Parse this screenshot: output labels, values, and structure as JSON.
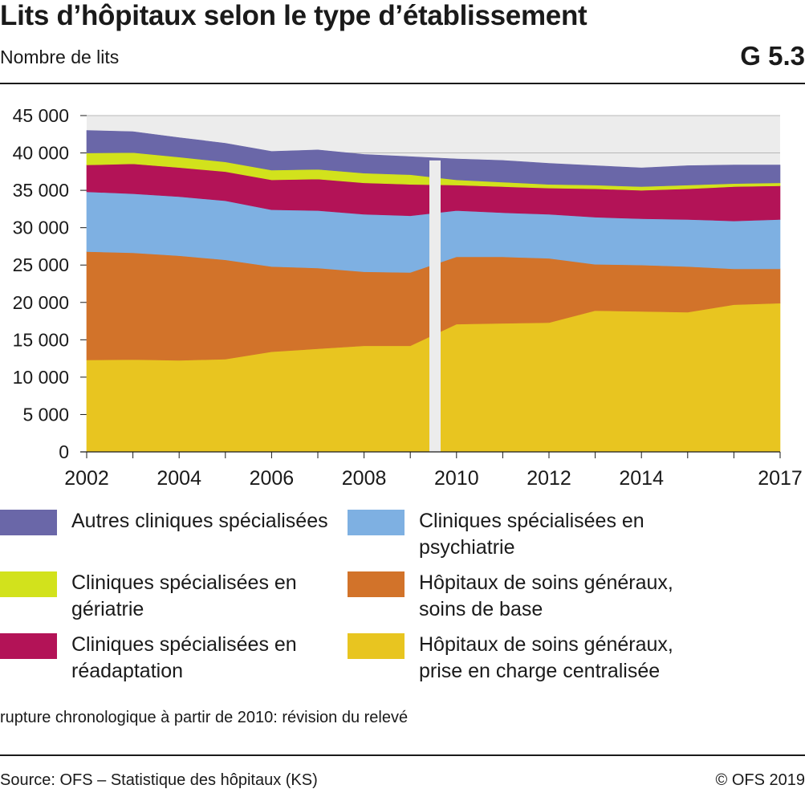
{
  "header": {
    "title": "Lits d’hôpitaux selon le type d’établissement",
    "subtitle": "Nombre de lits",
    "chart_id": "G 5.3"
  },
  "chart_data": {
    "type": "area",
    "stacked": true,
    "x": [
      2002,
      2003,
      2004,
      2005,
      2006,
      2007,
      2008,
      2009,
      2010,
      2011,
      2012,
      2013,
      2014,
      2015,
      2016,
      2017
    ],
    "x_tick_labels": [
      "2002",
      "2004",
      "2006",
      "2008",
      "2010",
      "2012",
      "2014",
      "2017"
    ],
    "x_ticks": [
      2002,
      2004,
      2006,
      2008,
      2010,
      2012,
      2014,
      2017
    ],
    "ylim": [
      0,
      45000
    ],
    "y_ticks": [
      0,
      5000,
      10000,
      15000,
      20000,
      25000,
      30000,
      35000,
      40000,
      45000
    ],
    "y_tick_labels": [
      "0",
      "5 000",
      "10 000",
      "15 000",
      "20 000",
      "25 000",
      "30 000",
      "35 000",
      "40 000",
      "45 000"
    ],
    "grid": true,
    "break_between": [
      2009,
      2010
    ],
    "series": [
      {
        "name": "Hôpitaux de soins généraux, prise en charge centralisée",
        "color": "#e8c520",
        "values": [
          12300,
          12350,
          12250,
          12400,
          13400,
          13800,
          14200,
          14200,
          17100,
          17200,
          17300,
          18900,
          18800,
          18700,
          19700,
          19900
        ]
      },
      {
        "name": "Hôpitaux de soins généraux, soins de base",
        "color": "#d2732a",
        "values": [
          14500,
          14300,
          14000,
          13300,
          11400,
          10800,
          9900,
          9800,
          9000,
          8900,
          8600,
          6200,
          6200,
          6100,
          4800,
          4600
        ]
      },
      {
        "name": "Cliniques spécialisées en psychiatrie",
        "color": "#7eb0e2",
        "values": [
          8000,
          7900,
          7900,
          7900,
          7600,
          7700,
          7700,
          7600,
          6200,
          5900,
          5900,
          6300,
          6200,
          6300,
          6400,
          6600
        ]
      },
      {
        "name": "Cliniques spécialisées en réadaptation",
        "color": "#b31357",
        "values": [
          3600,
          4000,
          3900,
          3900,
          4000,
          4200,
          4200,
          4200,
          3400,
          3500,
          3500,
          3800,
          3800,
          4100,
          4600,
          4500
        ]
      },
      {
        "name": "Cliniques spécialisées en gériatrie",
        "color": "#d2e21c",
        "values": [
          1600,
          1500,
          1400,
          1300,
          1300,
          1300,
          1300,
          1300,
          700,
          600,
          500,
          500,
          500,
          500,
          400,
          400
        ]
      },
      {
        "name": "Autres cliniques spécialisées",
        "color": "#6a67a8",
        "values": [
          3000,
          2800,
          2600,
          2500,
          2500,
          2600,
          2500,
          2400,
          2800,
          2900,
          2800,
          2600,
          2500,
          2600,
          2500,
          2400
        ]
      }
    ]
  },
  "legend": {
    "items": [
      {
        "label": "Autres cliniques spécialisées",
        "color": "#6a67a8"
      },
      {
        "label": "Cliniques spécialisées en psychiatrie",
        "color": "#7eb0e2"
      },
      {
        "label": "Cliniques spécialisées en gériatrie",
        "color": "#d2e21c"
      },
      {
        "label": "Hôpitaux de soins généraux, soins de base",
        "color": "#d2732a"
      },
      {
        "label": "Cliniques spécialisées en réadaptation",
        "color": "#b31357"
      },
      {
        "label": "Hôpitaux de soins généraux, prise en charge centralisée",
        "color": "#e8c520"
      }
    ]
  },
  "note": "rupture chronologique à partir de 2010: révision du relevé",
  "footer": {
    "source": "Source: OFS – Statistique des hôpitaux (KS)",
    "copyright": "© OFS 2019"
  }
}
